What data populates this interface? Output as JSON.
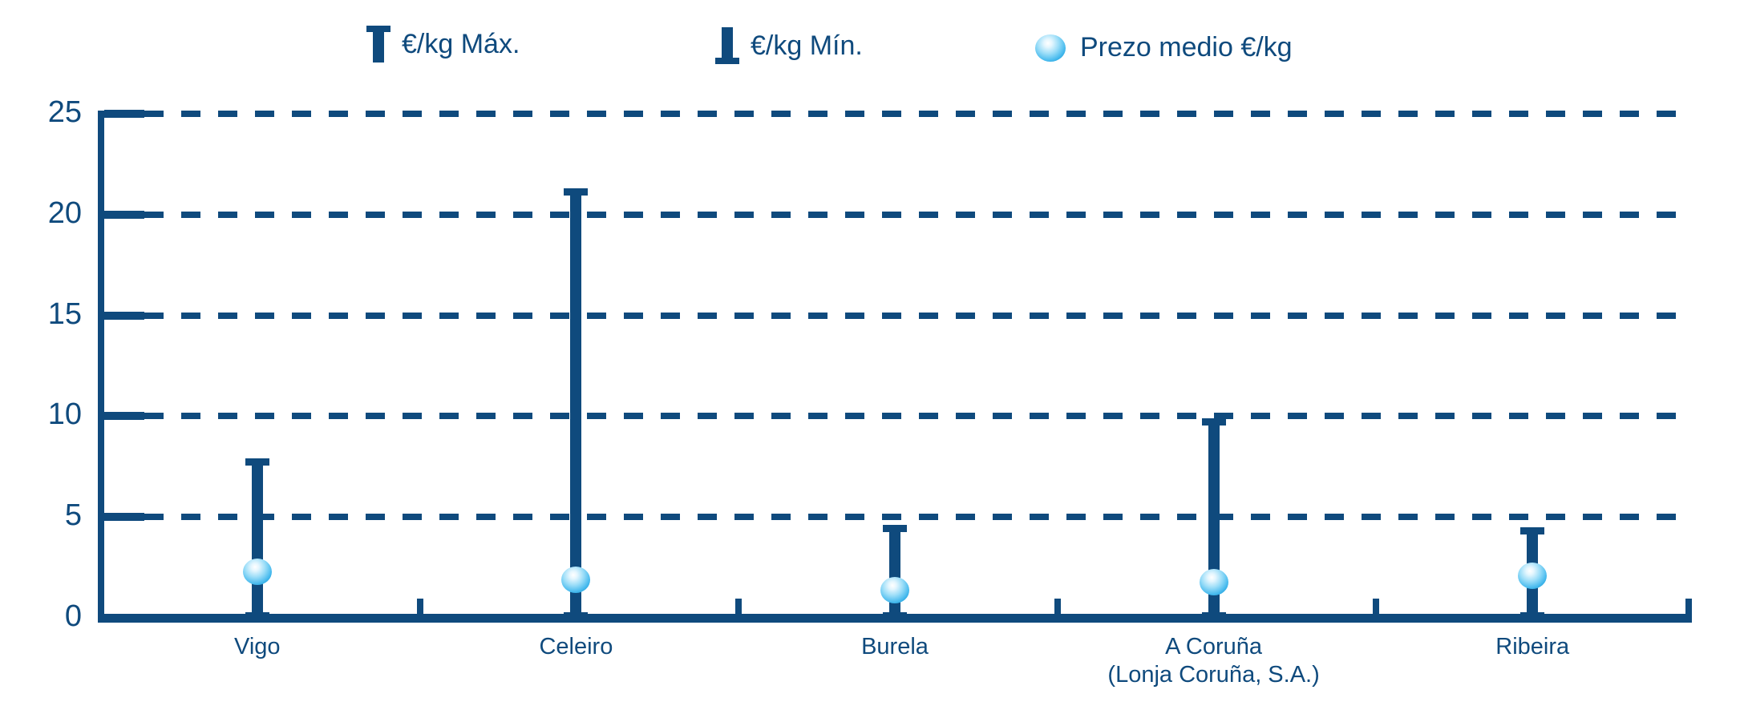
{
  "chart_data": {
    "type": "bar",
    "subtype": "range-bars-with-mean-markers",
    "title": "",
    "xlabel": "",
    "ylabel": "",
    "categories": [
      "Vigo",
      "Celeiro",
      "Burela",
      "A Coruña (Lonja Coruña, S.A.)",
      "Ribeira"
    ],
    "category_label_lines": [
      [
        "Vigo"
      ],
      [
        "Celeiro"
      ],
      [
        "Burela"
      ],
      [
        "A Coruña",
        "(Lonja Coruña, S.A.)"
      ],
      [
        "Ribeira"
      ]
    ],
    "series": [
      {
        "name": "€/kg Máx.",
        "marker": "bar-top-cap",
        "values": [
          7.9,
          21.3,
          4.6,
          9.9,
          4.5
        ]
      },
      {
        "name": "€/kg Mín.",
        "marker": "bar-bottom-cap",
        "values": [
          0.1,
          0.1,
          0.1,
          0.1,
          0.1
        ]
      },
      {
        "name": "Prezo medio €/kg",
        "marker": "sphere",
        "values": [
          2.3,
          1.9,
          1.4,
          1.8,
          2.1
        ]
      }
    ],
    "ylim": [
      0,
      25
    ],
    "yticks": [
      0,
      5,
      10,
      15,
      20,
      25
    ],
    "grid": "horizontal-dashed",
    "legend_position": "top"
  },
  "legend": {
    "max_label": "€/kg Máx.",
    "min_label": "€/kg Mín.",
    "avg_label": "Prezo medio €/kg"
  },
  "colors": {
    "navy": "#0F4A7D",
    "sphere_highlight": "#FFFFFF",
    "sphere_mid": "#49BBEE",
    "sphere_edge": "#1392D0",
    "background": "#FFFFFF"
  }
}
